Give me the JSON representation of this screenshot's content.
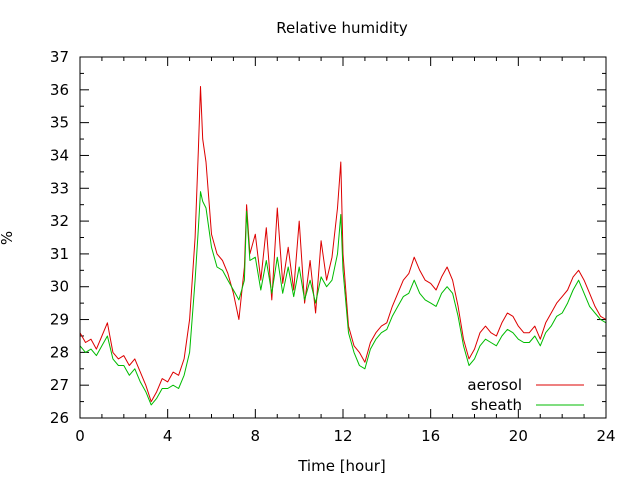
{
  "chart_data": {
    "type": "line",
    "title": "Relative humidity",
    "xlabel": "Time [hour]",
    "ylabel": "%",
    "xlim": [
      0,
      24
    ],
    "ylim": [
      26,
      37
    ],
    "x_ticks": [
      0,
      4,
      8,
      12,
      16,
      20,
      24
    ],
    "x_tick_labels": [
      "0",
      "4",
      "8",
      "12",
      "16",
      "20",
      "24"
    ],
    "y_ticks": [
      26,
      27,
      28,
      29,
      30,
      31,
      32,
      33,
      34,
      35,
      36,
      37
    ],
    "y_tick_labels": [
      "26",
      "27",
      "28",
      "29",
      "30",
      "31",
      "32",
      "33",
      "34",
      "35",
      "36",
      "37"
    ],
    "grid": false,
    "legend_position": "bottom-right",
    "series": [
      {
        "name": "aerosol",
        "color": "#dd0000",
        "x": [
          0,
          0.25,
          0.5,
          0.75,
          1.0,
          1.25,
          1.5,
          1.75,
          2.0,
          2.25,
          2.5,
          2.75,
          3.0,
          3.25,
          3.5,
          3.75,
          4.0,
          4.25,
          4.5,
          4.75,
          5.0,
          5.25,
          5.4,
          5.5,
          5.6,
          5.75,
          6.0,
          6.25,
          6.5,
          6.75,
          7.0,
          7.25,
          7.5,
          7.6,
          7.75,
          8.0,
          8.25,
          8.5,
          8.75,
          9.0,
          9.25,
          9.5,
          9.75,
          10.0,
          10.25,
          10.5,
          10.75,
          11.0,
          11.25,
          11.5,
          11.75,
          11.9,
          12.0,
          12.25,
          12.5,
          12.75,
          13.0,
          13.25,
          13.5,
          13.75,
          14.0,
          14.25,
          14.5,
          14.75,
          15.0,
          15.25,
          15.5,
          15.75,
          16.0,
          16.25,
          16.5,
          16.75,
          17.0,
          17.25,
          17.5,
          17.75,
          18.0,
          18.25,
          18.5,
          18.75,
          19.0,
          19.25,
          19.5,
          19.75,
          20.0,
          20.25,
          20.5,
          20.75,
          21.0,
          21.25,
          21.5,
          21.75,
          22.0,
          22.25,
          22.5,
          22.75,
          23.0,
          23.25,
          23.5,
          23.75,
          24.0
        ],
        "y": [
          28.6,
          28.3,
          28.4,
          28.1,
          28.5,
          28.9,
          28.0,
          27.8,
          27.9,
          27.6,
          27.8,
          27.4,
          27.0,
          26.5,
          26.8,
          27.2,
          27.1,
          27.4,
          27.3,
          27.8,
          29.0,
          31.5,
          34.2,
          36.1,
          34.5,
          33.8,
          31.6,
          31.0,
          30.8,
          30.4,
          29.8,
          29.0,
          30.6,
          32.5,
          31.0,
          31.6,
          30.2,
          31.8,
          29.6,
          32.4,
          30.1,
          31.2,
          29.9,
          32.0,
          29.5,
          30.8,
          29.2,
          31.4,
          30.2,
          30.9,
          32.4,
          33.8,
          31.0,
          28.8,
          28.2,
          28.0,
          27.7,
          28.3,
          28.6,
          28.8,
          28.9,
          29.4,
          29.8,
          30.2,
          30.4,
          30.9,
          30.5,
          30.2,
          30.1,
          29.9,
          30.3,
          30.6,
          30.2,
          29.4,
          28.4,
          27.8,
          28.1,
          28.6,
          28.8,
          28.6,
          28.5,
          28.9,
          29.2,
          29.1,
          28.8,
          28.6,
          28.6,
          28.8,
          28.4,
          28.9,
          29.2,
          29.5,
          29.7,
          29.9,
          30.3,
          30.5,
          30.2,
          29.8,
          29.4,
          29.1,
          29.0
        ]
      },
      {
        "name": "sheath",
        "color": "#00bb00",
        "x": [
          0,
          0.25,
          0.5,
          0.75,
          1.0,
          1.25,
          1.5,
          1.75,
          2.0,
          2.25,
          2.5,
          2.75,
          3.0,
          3.25,
          3.5,
          3.75,
          4.0,
          4.25,
          4.5,
          4.75,
          5.0,
          5.25,
          5.4,
          5.5,
          5.6,
          5.75,
          6.0,
          6.25,
          6.5,
          6.75,
          7.0,
          7.25,
          7.5,
          7.6,
          7.75,
          8.0,
          8.25,
          8.5,
          8.75,
          9.0,
          9.25,
          9.5,
          9.75,
          10.0,
          10.25,
          10.5,
          10.75,
          11.0,
          11.25,
          11.5,
          11.75,
          11.9,
          12.0,
          12.25,
          12.5,
          12.75,
          13.0,
          13.25,
          13.5,
          13.75,
          14.0,
          14.25,
          14.5,
          14.75,
          15.0,
          15.25,
          15.5,
          15.75,
          16.0,
          16.25,
          16.5,
          16.75,
          17.0,
          17.25,
          17.5,
          17.75,
          18.0,
          18.25,
          18.5,
          18.75,
          19.0,
          19.25,
          19.5,
          19.75,
          20.0,
          20.25,
          20.5,
          20.75,
          21.0,
          21.25,
          21.5,
          21.75,
          22.0,
          22.25,
          22.5,
          22.75,
          23.0,
          23.25,
          23.5,
          23.75,
          24.0
        ],
        "y": [
          28.2,
          28.0,
          28.1,
          27.9,
          28.2,
          28.5,
          27.8,
          27.6,
          27.6,
          27.3,
          27.5,
          27.1,
          26.8,
          26.4,
          26.6,
          26.9,
          26.9,
          27.0,
          26.9,
          27.3,
          28.0,
          30.2,
          31.8,
          32.9,
          32.6,
          32.4,
          31.2,
          30.6,
          30.5,
          30.2,
          29.9,
          29.6,
          30.2,
          32.3,
          30.8,
          30.9,
          29.9,
          30.8,
          29.8,
          30.9,
          29.8,
          30.6,
          29.7,
          30.6,
          29.6,
          30.2,
          29.5,
          30.3,
          30.0,
          30.2,
          31.0,
          32.2,
          30.5,
          28.6,
          28.0,
          27.6,
          27.5,
          28.1,
          28.4,
          28.6,
          28.7,
          29.1,
          29.4,
          29.7,
          29.8,
          30.2,
          29.8,
          29.6,
          29.5,
          29.4,
          29.8,
          30.0,
          29.8,
          29.1,
          28.2,
          27.6,
          27.8,
          28.2,
          28.4,
          28.3,
          28.2,
          28.5,
          28.7,
          28.6,
          28.4,
          28.3,
          28.3,
          28.5,
          28.2,
          28.6,
          28.8,
          29.1,
          29.2,
          29.5,
          29.9,
          30.2,
          29.8,
          29.4,
          29.2,
          29.0,
          28.9
        ]
      }
    ]
  }
}
